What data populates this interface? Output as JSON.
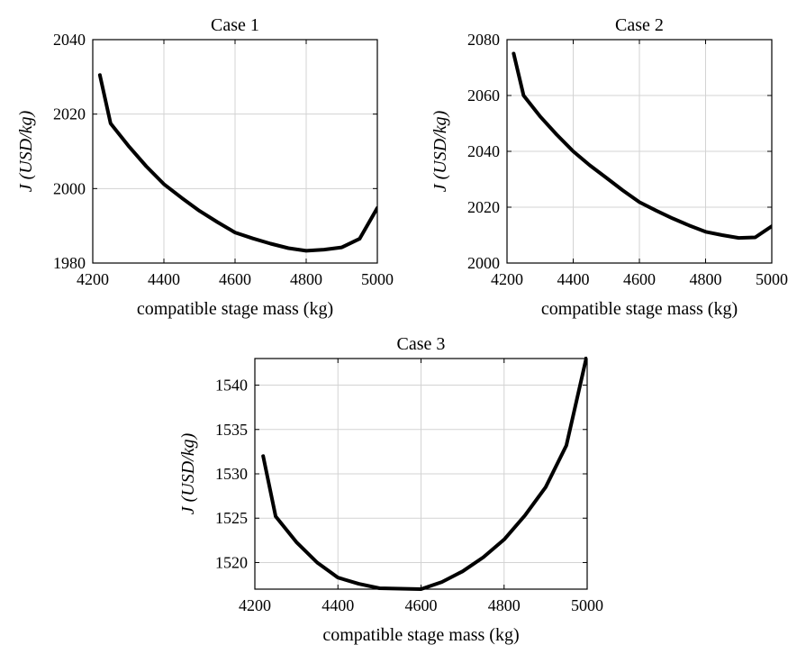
{
  "chart_data": [
    {
      "type": "line",
      "title": "Case 1",
      "xlabel": "compatible stage mass (kg)",
      "ylabel": "J (USD/kg)",
      "xlim": [
        4200,
        5000
      ],
      "ylim": [
        1980,
        2040
      ],
      "xticks": [
        4200,
        4400,
        4600,
        4800,
        5000
      ],
      "yticks": [
        1980,
        2000,
        2020,
        2040
      ],
      "grid": true,
      "series": [
        {
          "x": [
            4220,
            4250,
            4300,
            4350,
            4400,
            4450,
            4500,
            4550,
            4600,
            4650,
            4700,
            4750,
            4800,
            4850,
            4900,
            4950,
            5000
          ],
          "y": [
            2030.5,
            2017.5,
            2011.5,
            2006,
            2001.2,
            1997.5,
            1994,
            1991,
            1988.2,
            1986.6,
            1985.2,
            1984,
            1983.3,
            1983.6,
            1984.2,
            1986.5,
            1994.8
          ]
        }
      ]
    },
    {
      "type": "line",
      "title": "Case 2",
      "xlabel": "compatible stage mass (kg)",
      "ylabel": "J (USD/kg)",
      "xlim": [
        4200,
        5000
      ],
      "ylim": [
        2000,
        2080
      ],
      "xticks": [
        4200,
        4400,
        4600,
        4800,
        5000
      ],
      "yticks": [
        2000,
        2020,
        2040,
        2060,
        2080
      ],
      "grid": true,
      "series": [
        {
          "x": [
            4220,
            4250,
            4300,
            4350,
            4400,
            4450,
            4500,
            4550,
            4600,
            4650,
            4700,
            4750,
            4800,
            4850,
            4900,
            4950,
            5000
          ],
          "y": [
            2075,
            2060,
            2052.5,
            2046,
            2040,
            2035,
            2030.5,
            2026,
            2021.8,
            2018.8,
            2016,
            2013.5,
            2011.2,
            2010,
            2009,
            2009.2,
            2013.2
          ]
        }
      ]
    },
    {
      "type": "line",
      "title": "Case 3",
      "xlabel": "compatible stage mass (kg)",
      "ylabel": "J (USD/kg)",
      "xlim": [
        4200,
        5000
      ],
      "ylim": [
        1517,
        1543
      ],
      "xticks": [
        4200,
        4400,
        4600,
        4800,
        5000
      ],
      "yticks": [
        1520,
        1525,
        1530,
        1535,
        1540
      ],
      "grid": true,
      "series": [
        {
          "x": [
            4220,
            4250,
            4300,
            4350,
            4400,
            4450,
            4500,
            4550,
            4600,
            4650,
            4700,
            4750,
            4800,
            4850,
            4900,
            4950,
            5000
          ],
          "y": [
            1532,
            1525.2,
            1522.3,
            1520,
            1518.3,
            1517.6,
            1517.1,
            1517.05,
            1517,
            1517.8,
            1519,
            1520.6,
            1522.6,
            1525.3,
            1528.5,
            1533.2,
            1543.5
          ]
        }
      ]
    }
  ]
}
